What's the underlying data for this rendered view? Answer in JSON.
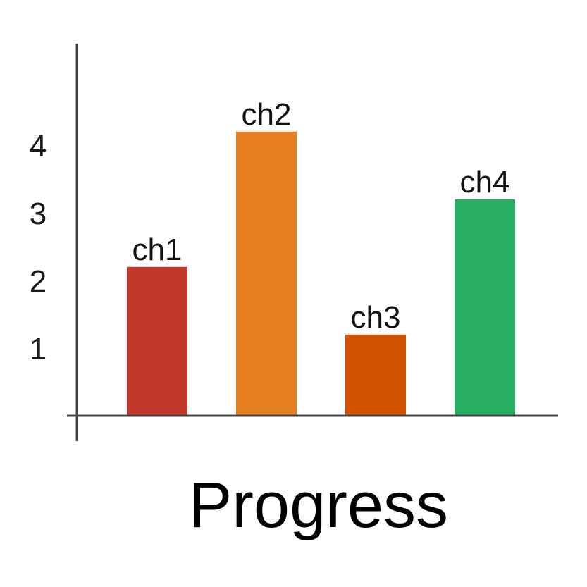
{
  "chart_data": {
    "type": "bar",
    "categories": [
      "ch1",
      "ch2",
      "ch3",
      "ch4"
    ],
    "values": [
      2.2,
      4.2,
      1.2,
      3.2
    ],
    "colors": [
      "#c0392b",
      "#e67e22",
      "#d35400",
      "#27ae60"
    ],
    "yticks": [
      1,
      2,
      3,
      4
    ],
    "ytick_labels": [
      "1",
      "2",
      "3",
      "4"
    ],
    "xlabel": "Progress",
    "ylabel": "",
    "title": "",
    "ylim": [
      0,
      5.5
    ],
    "grid": false,
    "legend": "none"
  }
}
